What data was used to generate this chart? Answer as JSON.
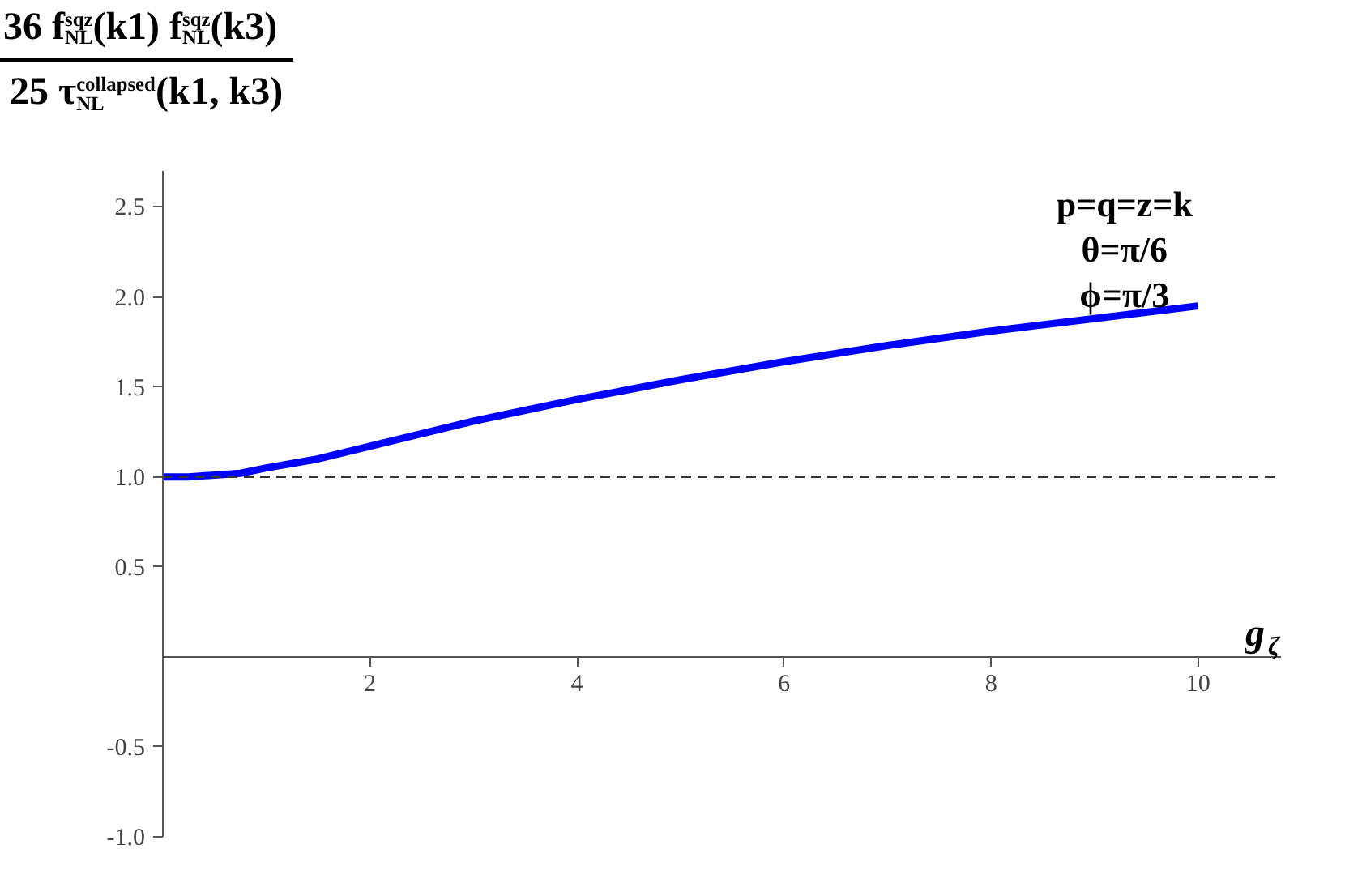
{
  "chart_data": {
    "type": "line",
    "ylabel": "36 f$^{sqz}$$_{NL}$(k1) f$^{sqz}$$_{NL}$(k3)\n25 τ$^{collapsed}$$_{NL}$(k1, k3)",
    "xlabel": "g$_{ζ}$",
    "annotations": [
      "p=q=z=k",
      "θ=π/6",
      "ϕ=π/3"
    ],
    "x": [
      0,
      0.25,
      0.5,
      0.75,
      1,
      1.5,
      2,
      2.5,
      3,
      3.5,
      4,
      5,
      6,
      7,
      8,
      9,
      10
    ],
    "series": [
      {
        "color": "#0000ff",
        "values": [
          1.0,
          1.0,
          1.01,
          1.02,
          1.05,
          1.1,
          1.17,
          1.24,
          1.31,
          1.37,
          1.43,
          1.54,
          1.64,
          1.73,
          1.81,
          1.88,
          1.95
        ]
      }
    ],
    "xlim": [
      0,
      10.8
    ],
    "ylim": [
      -1.0,
      2.7
    ],
    "xticks": [
      2,
      4,
      6,
      8,
      10
    ],
    "yticks": [
      {
        "value": -1.0,
        "label": "-1.0"
      },
      {
        "value": -0.5,
        "label": "-0.5"
      },
      {
        "value": 0.5,
        "label": "0.5"
      },
      {
        "value": 1.0,
        "label": "1.0"
      },
      {
        "value": 1.5,
        "label": "1.5"
      },
      {
        "value": 2.0,
        "label": "2.0"
      },
      {
        "value": 2.5,
        "label": "2.5"
      }
    ],
    "ref_lines": [
      {
        "axis": "y",
        "value": 1.0,
        "color": "#333333",
        "line_style": "dashed"
      }
    ],
    "grid": false,
    "line_style": "solid",
    "marker": "none"
  }
}
